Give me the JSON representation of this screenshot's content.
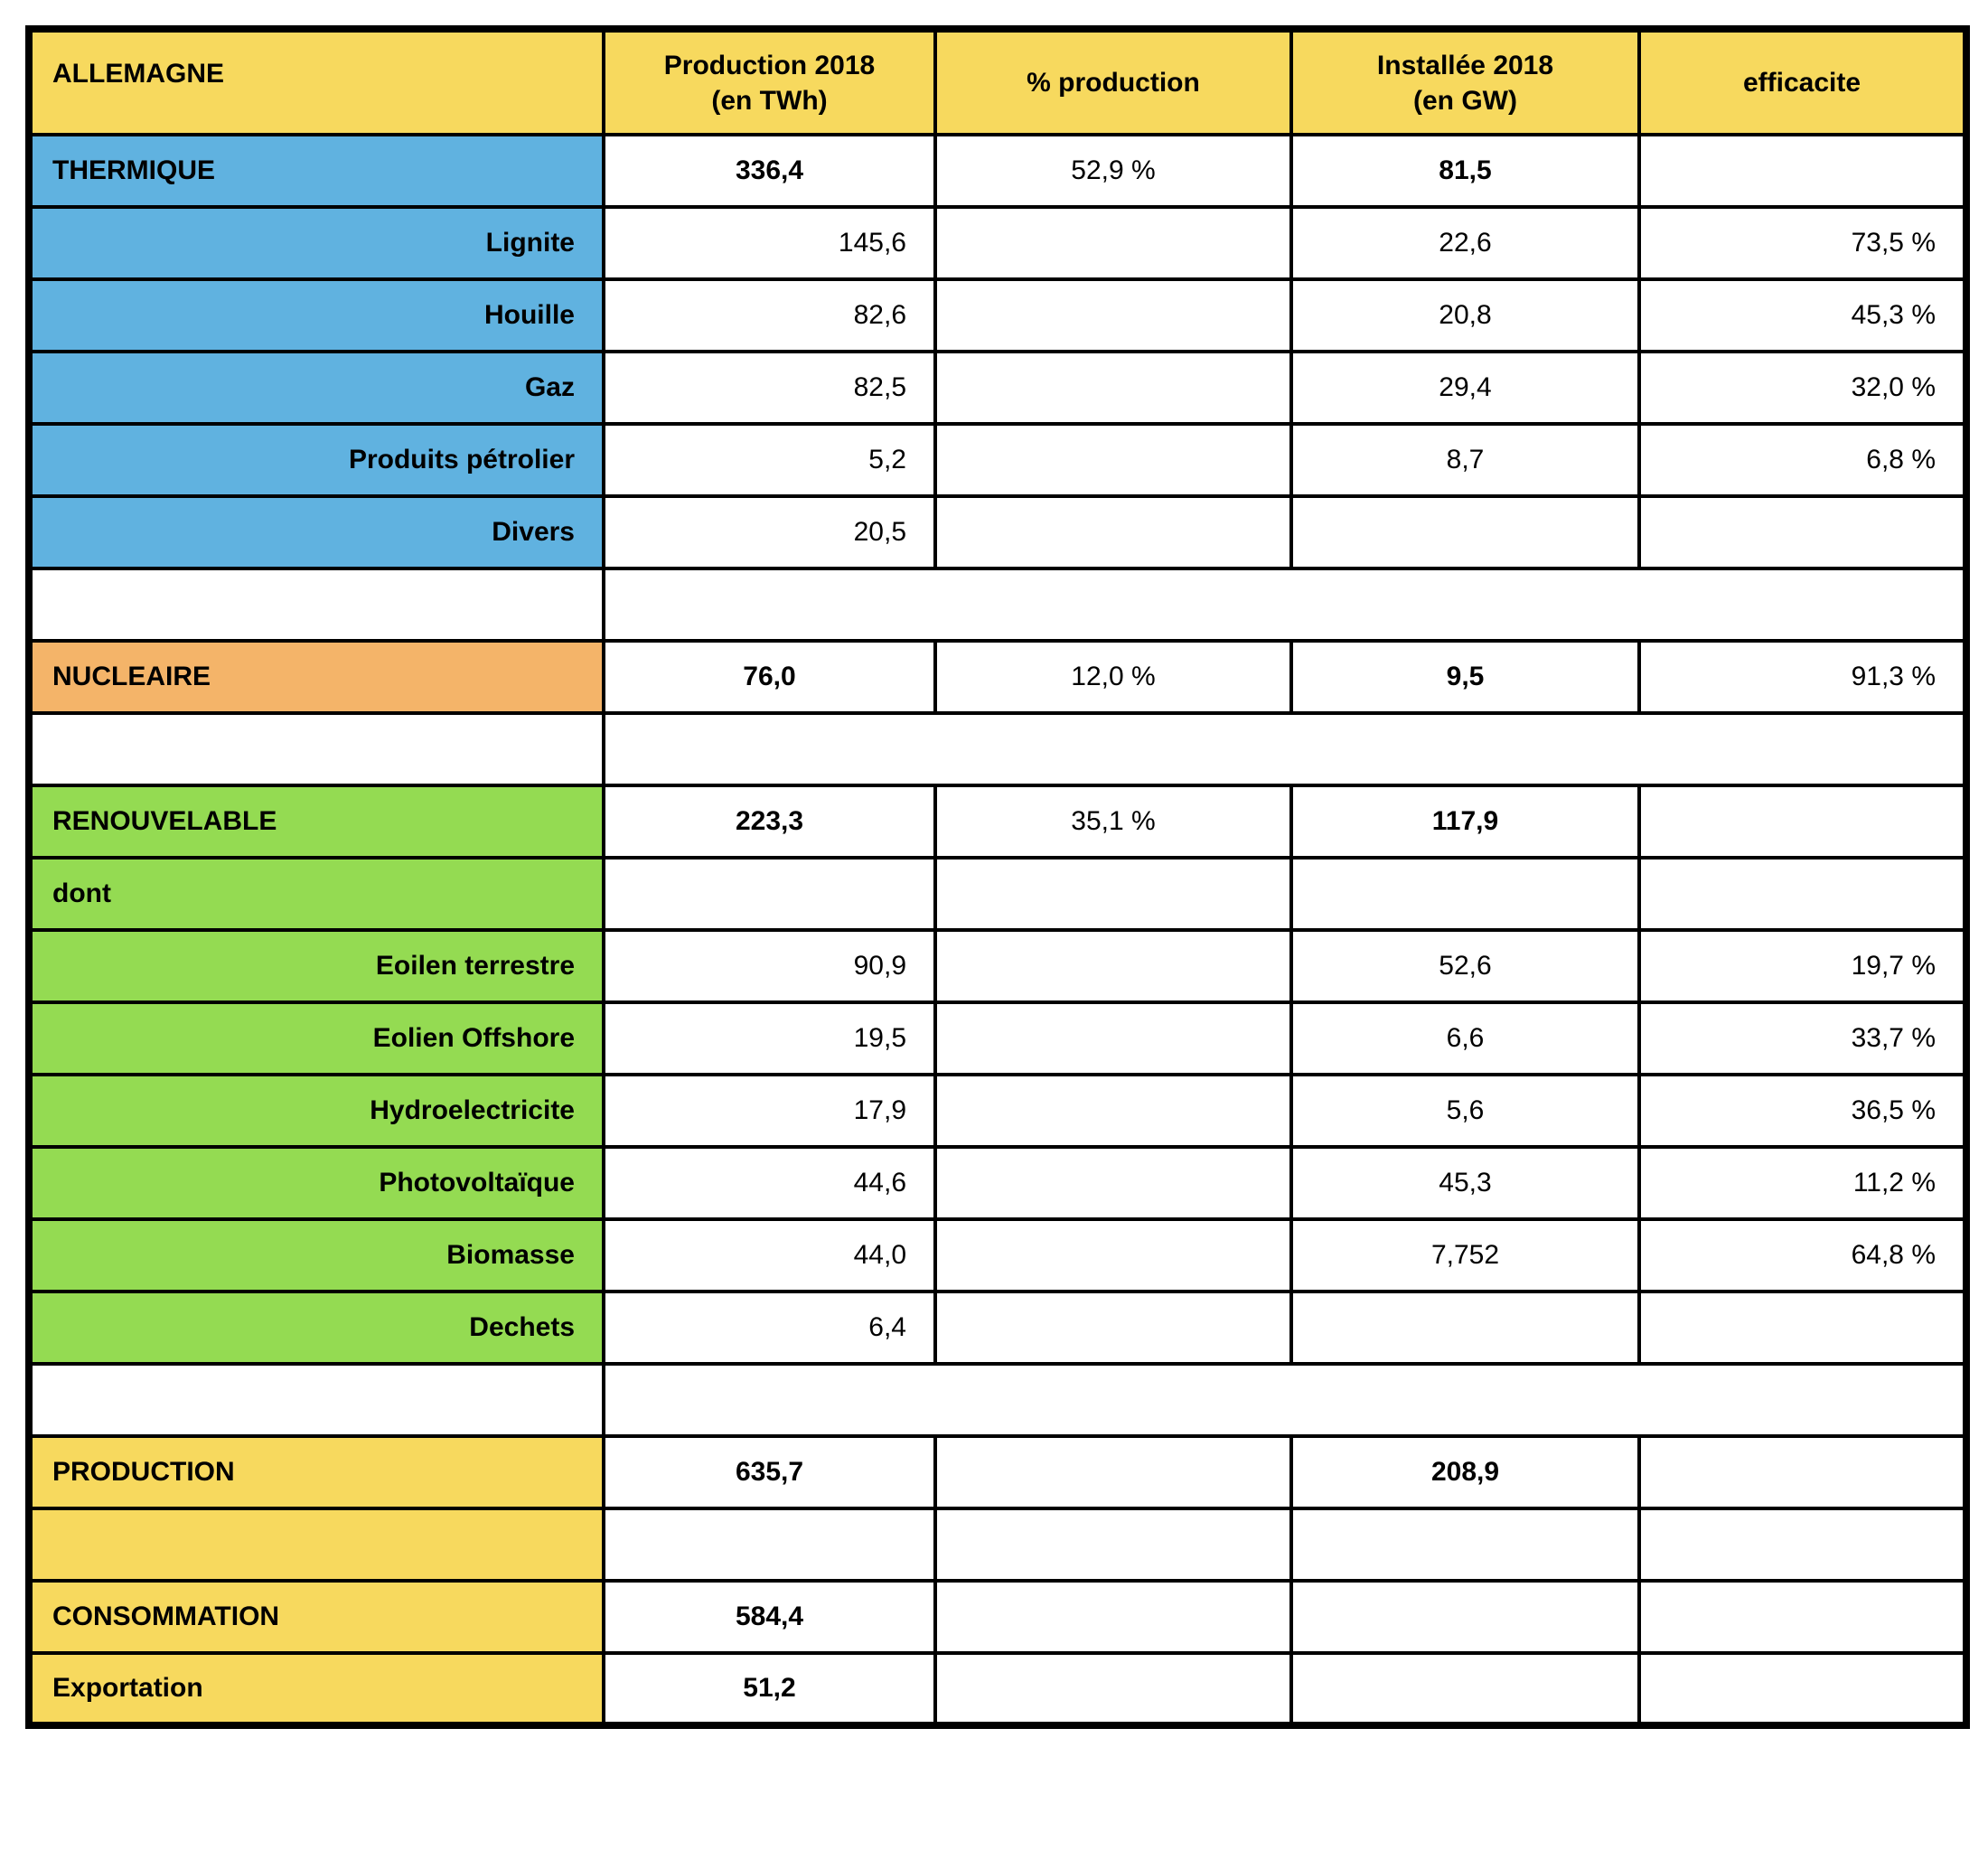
{
  "table": {
    "colors": {
      "white": "#FFFFFF",
      "yellow": "#F7D95E",
      "blue": "#60B2E0",
      "orange": "#F4B469",
      "green": "#94DB52",
      "border": "#000000",
      "text": "#000000"
    },
    "columns": [
      {
        "key": "allemagne",
        "label": "ALLEMAGNE"
      },
      {
        "key": "production",
        "label": "Production 2018\n(en TWh)"
      },
      {
        "key": "pct-production",
        "label": "% production"
      },
      {
        "key": "installee",
        "label": "Installée 2018\n(en GW)"
      },
      {
        "key": "efficacite",
        "label": "efficacite"
      }
    ],
    "rows": [
      {
        "name": "thermique",
        "label": "THERMIQUE",
        "type": "section",
        "bg": "blue",
        "spacer": false,
        "cells": [
          {
            "value": "336,4",
            "align": "center",
            "bold": true
          },
          {
            "value": "52,9 %",
            "align": "center",
            "bold": false
          },
          {
            "value": "81,5",
            "align": "center",
            "bold": true
          },
          {
            "value": "",
            "align": "right",
            "bold": false
          }
        ]
      },
      {
        "name": "lignite",
        "label": "Lignite",
        "type": "sub",
        "bg": "blue",
        "spacer": false,
        "cells": [
          {
            "value": "145,6",
            "align": "right",
            "bold": false
          },
          {
            "value": "",
            "align": "center",
            "bold": false
          },
          {
            "value": "22,6",
            "align": "center",
            "bold": false
          },
          {
            "value": "73,5 %",
            "align": "right",
            "bold": false
          }
        ]
      },
      {
        "name": "houille",
        "label": "Houille",
        "type": "sub",
        "bg": "blue",
        "spacer": false,
        "cells": [
          {
            "value": "82,6",
            "align": "right",
            "bold": false
          },
          {
            "value": "",
            "align": "center",
            "bold": false
          },
          {
            "value": "20,8",
            "align": "center",
            "bold": false
          },
          {
            "value": "45,3 %",
            "align": "right",
            "bold": false
          }
        ]
      },
      {
        "name": "gaz",
        "label": "Gaz",
        "type": "sub",
        "bg": "blue",
        "spacer": false,
        "cells": [
          {
            "value": "82,5",
            "align": "right",
            "bold": false
          },
          {
            "value": "",
            "align": "center",
            "bold": false
          },
          {
            "value": "29,4",
            "align": "center",
            "bold": false
          },
          {
            "value": "32,0 %",
            "align": "right",
            "bold": false
          }
        ]
      },
      {
        "name": "produits-petrolier",
        "label": "Produits pétrolier",
        "type": "sub",
        "bg": "blue",
        "spacer": false,
        "cells": [
          {
            "value": "5,2",
            "align": "right",
            "bold": false
          },
          {
            "value": "",
            "align": "center",
            "bold": false
          },
          {
            "value": "8,7",
            "align": "center",
            "bold": false
          },
          {
            "value": "6,8 %",
            "align": "right",
            "bold": false
          }
        ]
      },
      {
        "name": "divers",
        "label": "Divers",
        "type": "sub",
        "bg": "blue",
        "spacer": false,
        "cells": [
          {
            "value": "20,5",
            "align": "right",
            "bold": false
          },
          {
            "value": "",
            "align": "center",
            "bold": false
          },
          {
            "value": "",
            "align": "center",
            "bold": false
          },
          {
            "value": "",
            "align": "right",
            "bold": false
          }
        ]
      },
      {
        "name": "spacer-1",
        "label": "",
        "type": "section",
        "bg": "white",
        "spacer": true,
        "cells": []
      },
      {
        "name": "nucleaire",
        "label": "NUCLEAIRE",
        "type": "section",
        "bg": "orange",
        "spacer": false,
        "cells": [
          {
            "value": "76,0",
            "align": "center",
            "bold": true
          },
          {
            "value": "12,0 %",
            "align": "center",
            "bold": false
          },
          {
            "value": "9,5",
            "align": "center",
            "bold": true
          },
          {
            "value": "91,3 %",
            "align": "right",
            "bold": false
          }
        ]
      },
      {
        "name": "spacer-2",
        "label": "",
        "type": "section",
        "bg": "white",
        "spacer": true,
        "cells": []
      },
      {
        "name": "renouvelable",
        "label": "RENOUVELABLE",
        "type": "section",
        "bg": "green",
        "spacer": false,
        "cells": [
          {
            "value": "223,3",
            "align": "center",
            "bold": true
          },
          {
            "value": "35,1 %",
            "align": "center",
            "bold": false
          },
          {
            "value": "117,9",
            "align": "center",
            "bold": true
          },
          {
            "value": "",
            "align": "right",
            "bold": false
          }
        ]
      },
      {
        "name": "dont",
        "label": "dont",
        "type": "section",
        "bg": "green",
        "spacer": false,
        "cells": [
          {
            "value": "",
            "align": "center",
            "bold": false
          },
          {
            "value": "",
            "align": "center",
            "bold": false
          },
          {
            "value": "",
            "align": "center",
            "bold": false
          },
          {
            "value": "",
            "align": "right",
            "bold": false
          }
        ]
      },
      {
        "name": "eolien-terrestre",
        "label": "Eoilen terrestre",
        "type": "sub",
        "bg": "green",
        "spacer": false,
        "cells": [
          {
            "value": "90,9",
            "align": "right",
            "bold": false
          },
          {
            "value": "",
            "align": "center",
            "bold": false
          },
          {
            "value": "52,6",
            "align": "center",
            "bold": false
          },
          {
            "value": "19,7 %",
            "align": "right",
            "bold": false
          }
        ]
      },
      {
        "name": "eolien-offshore",
        "label": "Eolien Offshore",
        "type": "sub",
        "bg": "green",
        "spacer": false,
        "cells": [
          {
            "value": "19,5",
            "align": "right",
            "bold": false
          },
          {
            "value": "",
            "align": "center",
            "bold": false
          },
          {
            "value": "6,6",
            "align": "center",
            "bold": false
          },
          {
            "value": "33,7 %",
            "align": "right",
            "bold": false
          }
        ]
      },
      {
        "name": "hydroelectricite",
        "label": "Hydroelectricite",
        "type": "sub",
        "bg": "green",
        "spacer": false,
        "cells": [
          {
            "value": "17,9",
            "align": "right",
            "bold": false
          },
          {
            "value": "",
            "align": "center",
            "bold": false
          },
          {
            "value": "5,6",
            "align": "center",
            "bold": false
          },
          {
            "value": "36,5 %",
            "align": "right",
            "bold": false
          }
        ]
      },
      {
        "name": "photovoltaique",
        "label": "Photovoltaïque",
        "type": "sub",
        "bg": "green",
        "spacer": false,
        "cells": [
          {
            "value": "44,6",
            "align": "right",
            "bold": false
          },
          {
            "value": "",
            "align": "center",
            "bold": false
          },
          {
            "value": "45,3",
            "align": "center",
            "bold": false
          },
          {
            "value": "11,2 %",
            "align": "right",
            "bold": false
          }
        ]
      },
      {
        "name": "biomasse",
        "label": "Biomasse",
        "type": "sub",
        "bg": "green",
        "spacer": false,
        "cells": [
          {
            "value": "44,0",
            "align": "right",
            "bold": false
          },
          {
            "value": "",
            "align": "center",
            "bold": false
          },
          {
            "value": "7,752",
            "align": "center",
            "bold": false
          },
          {
            "value": "64,8 %",
            "align": "right",
            "bold": false
          }
        ]
      },
      {
        "name": "dechets",
        "label": "Dechets",
        "type": "sub",
        "bg": "green",
        "spacer": false,
        "cells": [
          {
            "value": "6,4",
            "align": "right",
            "bold": false
          },
          {
            "value": "",
            "align": "center",
            "bold": false
          },
          {
            "value": "",
            "align": "center",
            "bold": false
          },
          {
            "value": "",
            "align": "right",
            "bold": false
          }
        ]
      },
      {
        "name": "spacer-3",
        "label": "",
        "type": "section",
        "bg": "white",
        "spacer": true,
        "cells": []
      },
      {
        "name": "production",
        "label": "PRODUCTION",
        "type": "section",
        "bg": "yellow",
        "spacer": false,
        "cells": [
          {
            "value": "635,7",
            "align": "center",
            "bold": true
          },
          {
            "value": "",
            "align": "center",
            "bold": false
          },
          {
            "value": "208,9",
            "align": "center",
            "bold": true
          },
          {
            "value": "",
            "align": "right",
            "bold": false
          }
        ]
      },
      {
        "name": "blank-yellow",
        "label": "",
        "type": "section",
        "bg": "yellow",
        "spacer": false,
        "cells": [
          {
            "value": "",
            "align": "center",
            "bold": false
          },
          {
            "value": "",
            "align": "center",
            "bold": false
          },
          {
            "value": "",
            "align": "center",
            "bold": false
          },
          {
            "value": "",
            "align": "right",
            "bold": false
          }
        ]
      },
      {
        "name": "consommation",
        "label": "CONSOMMATION",
        "type": "section",
        "bg": "yellow",
        "spacer": false,
        "cells": [
          {
            "value": "584,4",
            "align": "center",
            "bold": true
          },
          {
            "value": "",
            "align": "center",
            "bold": false
          },
          {
            "value": "",
            "align": "center",
            "bold": false
          },
          {
            "value": "",
            "align": "right",
            "bold": false
          }
        ]
      },
      {
        "name": "exportation",
        "label": "Exportation",
        "type": "section",
        "bg": "yellow",
        "spacer": false,
        "cells": [
          {
            "value": "51,2",
            "align": "center",
            "bold": true
          },
          {
            "value": "",
            "align": "center",
            "bold": false
          },
          {
            "value": "",
            "align": "center",
            "bold": false
          },
          {
            "value": "",
            "align": "right",
            "bold": false
          }
        ]
      }
    ]
  },
  "chart_data": {
    "type": "table",
    "title": "ALLEMAGNE",
    "columns": [
      "ALLEMAGNE",
      "Production 2018 (en TWh)",
      "% production",
      "Installée 2018 (en GW)",
      "efficacite"
    ],
    "rows": [
      [
        "THERMIQUE",
        "336,4",
        "52,9 %",
        "81,5",
        ""
      ],
      [
        "Lignite",
        "145,6",
        "",
        "22,6",
        "73,5 %"
      ],
      [
        "Houille",
        "82,6",
        "",
        "20,8",
        "45,3 %"
      ],
      [
        "Gaz",
        "82,5",
        "",
        "29,4",
        "32,0 %"
      ],
      [
        "Produits pétrolier",
        "5,2",
        "",
        "8,7",
        "6,8 %"
      ],
      [
        "Divers",
        "20,5",
        "",
        "",
        ""
      ],
      [
        "NUCLEAIRE",
        "76,0",
        "12,0 %",
        "9,5",
        "91,3 %"
      ],
      [
        "RENOUVELABLE",
        "223,3",
        "35,1 %",
        "117,9",
        ""
      ],
      [
        "dont",
        "",
        "",
        "",
        ""
      ],
      [
        "Eoilen terrestre",
        "90,9",
        "",
        "52,6",
        "19,7 %"
      ],
      [
        "Eolien Offshore",
        "19,5",
        "",
        "6,6",
        "33,7 %"
      ],
      [
        "Hydroelectricite",
        "17,9",
        "",
        "5,6",
        "36,5 %"
      ],
      [
        "Photovoltaïque",
        "44,6",
        "",
        "45,3",
        "11,2 %"
      ],
      [
        "Biomasse",
        "44,0",
        "",
        "7,752",
        "64,8 %"
      ],
      [
        "Dechets",
        "6,4",
        "",
        "",
        ""
      ],
      [
        "PRODUCTION",
        "635,7",
        "",
        "208,9",
        ""
      ],
      [
        "CONSOMMATION",
        "584,4",
        "",
        "",
        ""
      ],
      [
        "Exportation",
        "51,2",
        "",
        "",
        ""
      ]
    ]
  }
}
